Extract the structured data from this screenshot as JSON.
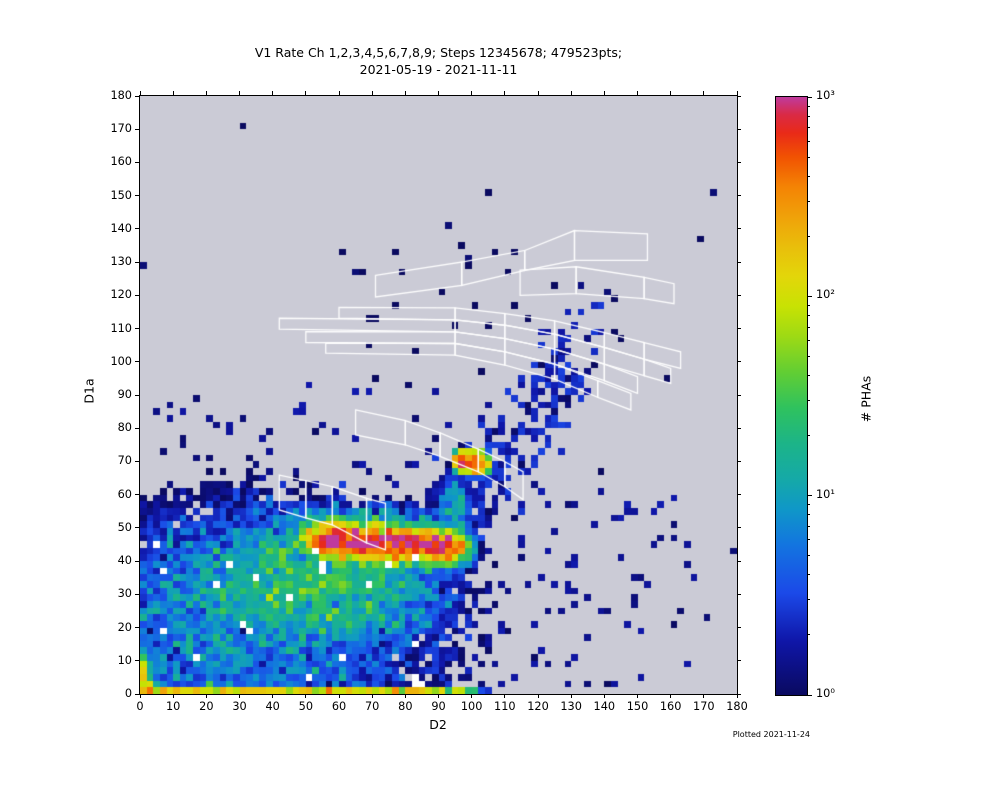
{
  "title": {
    "line1": "V1 Rate Ch 1,2,3,4,5,6,7,8,9; Steps 12345678; 479523pts;",
    "line2": "2021-05-19 - 2021-11-11"
  },
  "footnote": "Plotted 2021-11-24",
  "axes": {
    "xlabel": "D2",
    "ylabel": "D1a",
    "xlim": [
      0,
      180
    ],
    "ylim": [
      0,
      180
    ],
    "xticks": [
      0,
      10,
      20,
      30,
      40,
      50,
      60,
      70,
      80,
      90,
      100,
      110,
      120,
      130,
      140,
      150,
      160,
      170,
      180
    ],
    "yticks": [
      0,
      10,
      20,
      30,
      40,
      50,
      60,
      70,
      80,
      90,
      100,
      110,
      120,
      130,
      140,
      150,
      160,
      170,
      180
    ]
  },
  "colorbar": {
    "label": "# PHAs",
    "scale": "log10",
    "range": [
      1,
      1000
    ],
    "major_ticks": [
      {
        "label": "10³",
        "exp": 3
      },
      {
        "label": "10²",
        "exp": 2
      },
      {
        "label": "10¹",
        "exp": 1
      },
      {
        "label": "10⁰",
        "exp": 0
      }
    ]
  },
  "colors": {
    "page_bg": "#ffffff",
    "plot_bg": "#cbcbd6",
    "frame": "#000000",
    "overlay": "#ffffff",
    "text": "#000000",
    "cmap_stops": [
      [
        0.0,
        "#0a0a60"
      ],
      [
        0.09,
        "#0f16a8"
      ],
      [
        0.17,
        "#1b49e8"
      ],
      [
        0.25,
        "#1374e0"
      ],
      [
        0.31,
        "#0f97c8"
      ],
      [
        0.36,
        "#15a9a8"
      ],
      [
        0.42,
        "#1cb488"
      ],
      [
        0.48,
        "#2fc25e"
      ],
      [
        0.54,
        "#62ce33"
      ],
      [
        0.6,
        "#9eda14"
      ],
      [
        0.65,
        "#c8e203"
      ],
      [
        0.7,
        "#e3d60a"
      ],
      [
        0.75,
        "#e9be0b"
      ],
      [
        0.8,
        "#f0a109"
      ],
      [
        0.85,
        "#f48304"
      ],
      [
        0.9,
        "#f15202"
      ],
      [
        0.94,
        "#e92a18"
      ],
      [
        0.97,
        "#da2a44"
      ],
      [
        1.0,
        "#bf3a9e"
      ]
    ]
  },
  "chart_data": {
    "type": "heatmap",
    "x_range": [
      0,
      180
    ],
    "y_range": [
      0,
      180
    ],
    "bin_size": 2,
    "count_scale": "log10",
    "count_range": [
      1,
      1000
    ],
    "seed": 20211124,
    "noise_sigma": 0.55,
    "density_components": [
      {
        "name": "main-blob",
        "type": "gauss",
        "cx": 30,
        "cy": 22,
        "sx": 52,
        "ex": 2.4,
        "sy": 30,
        "ey": 2.4,
        "amp": 6.5
      },
      {
        "name": "blob-core",
        "type": "gauss",
        "cx": 55,
        "cy": 34,
        "sx": 28,
        "ex": 2.8,
        "sy": 13,
        "ey": 2.8,
        "amp": 17
      },
      {
        "name": "proton-ellipse",
        "type": "gauss",
        "cx": 74,
        "cy": 45.5,
        "sx": 21,
        "ex": 6,
        "sy": 3.1,
        "ey": 2,
        "amp": 1000,
        "tilt": 0.055
      },
      {
        "name": "alpha-spot",
        "type": "gauss",
        "cx": 100,
        "cy": 69.7,
        "sx": 4.2,
        "ex": 4,
        "sy": 2.0,
        "ey": 2,
        "amp": 900,
        "tilt": 0.08
      },
      {
        "name": "connector-band",
        "type": "gauss",
        "cx": 95,
        "cy": 58,
        "sx": 4,
        "ex": 2,
        "sy": 6.5,
        "ey": 2,
        "amp": 9
      },
      {
        "name": "ellipse-halo",
        "type": "gauss",
        "cx": 68,
        "cy": 53,
        "sx": 26,
        "ex": 2.6,
        "sy": 3.5,
        "ey": 2.6,
        "amp": 7
      },
      {
        "name": "origin-streak",
        "type": "gauss",
        "cx": 1,
        "cy": 0,
        "sx": 1.9,
        "ex": 1.8,
        "sy": 8,
        "ey": 1.8,
        "amp": 130
      },
      {
        "name": "bottom-row",
        "type": "hrow",
        "y_max": 2,
        "x_flat": 86,
        "x_fall": 9,
        "amp": 120
      }
    ],
    "scatter_clusters": [
      {
        "name": "heavy-ion-track-scatter",
        "type": "band",
        "n": 260,
        "from": [
          93,
          52
        ],
        "to": [
          138,
          108
        ],
        "spread": 8,
        "vmin": 1,
        "vmax": 3
      },
      {
        "name": "upper-sparse",
        "type": "rect",
        "n": 55,
        "x": [
          4,
          95
        ],
        "y": [
          53,
          93
        ],
        "vmin": 1,
        "vmax": 2
      },
      {
        "name": "right-sparse",
        "type": "rect",
        "n": 85,
        "x": [
          96,
          168
        ],
        "y": [
          2,
          62
        ],
        "vmin": 1,
        "vmax": 2
      },
      {
        "name": "box-region-sparse",
        "type": "rect",
        "n": 28,
        "x": [
          60,
          145
        ],
        "y": [
          93,
          136
        ],
        "vmin": 1,
        "vmax": 1
      },
      {
        "name": "far-sparse",
        "type": "rect",
        "n": 10,
        "x": [
          2,
          178
        ],
        "y": [
          2,
          178
        ],
        "vmin": 1,
        "vmax": 1
      },
      {
        "name": "white-specks",
        "type": "rect",
        "n": 22,
        "x": [
          4,
          86
        ],
        "y": [
          2,
          46
        ],
        "color": "#ffffff"
      }
    ],
    "fixed_points": [
      [
        0.5,
        128
      ],
      [
        65.7,
        127
      ],
      [
        140,
        121
      ],
      [
        173,
        150
      ],
      [
        178.8,
        43.6
      ],
      [
        170.9,
        22.9
      ],
      [
        93,
        141
      ],
      [
        98,
        130.5
      ],
      [
        30,
        83
      ],
      [
        12,
        75
      ]
    ],
    "overlay_polygon_chains": [
      {
        "name": "track-chain-1",
        "vertices": [
          [
            71,
            126,
            119.5
          ],
          [
            97,
            130,
            123
          ],
          [
            116,
            133.5,
            127.5
          ],
          [
            131,
            139.5,
            130.5
          ],
          [
            153,
            138.5,
            130.5
          ]
        ]
      },
      {
        "name": "track-chain-2",
        "vertices": [
          [
            114.6,
            127.6,
            120
          ],
          [
            131.5,
            128.6,
            120.5
          ],
          [
            152,
            125.4,
            119
          ],
          [
            161,
            123.5,
            117.5
          ]
        ]
      },
      {
        "name": "track-chain-3",
        "vertices": [
          [
            60,
            116.4,
            113.1
          ],
          [
            95,
            116.2,
            112.6
          ],
          [
            110,
            114.5,
            111
          ],
          [
            125,
            112.3,
            108.3
          ],
          [
            140,
            108.8,
            104.3
          ],
          [
            152,
            105.8,
            100.8
          ],
          [
            163,
            103,
            98
          ]
        ]
      },
      {
        "name": "track-chain-4",
        "vertices": [
          [
            42,
            113.1,
            109.8
          ],
          [
            95,
            112.6,
            109
          ],
          [
            110,
            111,
            107
          ],
          [
            125,
            108.3,
            103.8
          ],
          [
            140,
            104.3,
            99.3
          ],
          [
            152,
            100.8,
            95.8
          ],
          [
            160,
            98,
            93.5
          ]
        ]
      },
      {
        "name": "track-chain-5",
        "vertices": [
          [
            50,
            109.1,
            105.8
          ],
          [
            95,
            109,
            105.5
          ],
          [
            110,
            107,
            103
          ],
          [
            125,
            103.8,
            99.3
          ],
          [
            140,
            99.3,
            94.3
          ],
          [
            150,
            95.5,
            90.5
          ]
        ]
      },
      {
        "name": "track-chain-6",
        "vertices": [
          [
            56,
            105.6,
            102.6
          ],
          [
            95,
            105.5,
            102
          ],
          [
            110,
            103,
            99
          ],
          [
            125,
            99.3,
            94.8
          ],
          [
            138,
            94.3,
            89.3
          ],
          [
            148,
            90.5,
            85.5
          ]
        ]
      },
      {
        "name": "track-chain-7",
        "vertices": [
          [
            65,
            85.5,
            78
          ],
          [
            80,
            82.3,
            75
          ],
          [
            90.5,
            78.6,
            71.5
          ],
          [
            102,
            73.7,
            66.9
          ],
          [
            110,
            69.9,
            62.4
          ],
          [
            115.5,
            66.9,
            58.5
          ]
        ]
      },
      {
        "name": "track-chain-8",
        "vertices": [
          [
            42,
            65.9,
            55.4
          ],
          [
            50,
            64.2,
            53
          ],
          [
            58,
            62.4,
            50.9
          ],
          [
            68.3,
            58.9,
            45.5
          ],
          [
            74,
            57.4,
            43.4
          ]
        ]
      }
    ]
  }
}
